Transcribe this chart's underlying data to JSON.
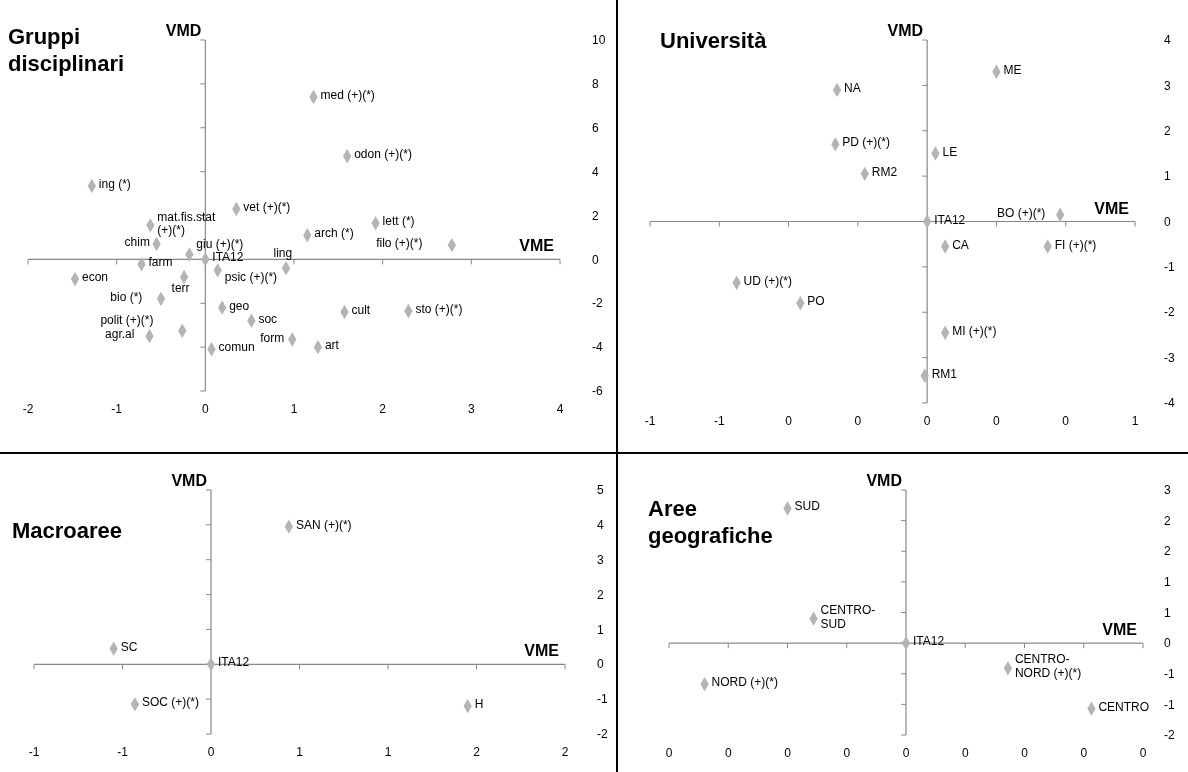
{
  "chart_data": [
    {
      "type": "scatter",
      "title": "Gruppi\ndisciplinari",
      "xlabel": "VME",
      "ylabel": "VMD",
      "marker": "diamond",
      "xlim": [
        -2,
        4
      ],
      "ylim": [
        -6,
        10
      ],
      "xticks": [
        -2,
        -1,
        0,
        1,
        2,
        3,
        4
      ],
      "yticks": [
        -6,
        -4,
        -2,
        0,
        2,
        4,
        6,
        8,
        10
      ],
      "series": [
        {
          "color": "#b4b4b4",
          "x": [
            1.22,
            1.6,
            -1.28,
            0.35,
            -0.62,
            -0.55,
            -0.18,
            0,
            1.15,
            1.92,
            2.78,
            -0.72,
            -1.47,
            -0.24,
            0.14,
            0.91,
            -0.5,
            0.19,
            0.52,
            1.57,
            2.29,
            -0.26,
            -0.63,
            0.98,
            1.27,
            0.07
          ],
          "values": [
            7.4,
            4.7,
            3.35,
            2.3,
            1.55,
            0.7,
            0.22,
            0,
            1.1,
            1.65,
            0.65,
            -0.22,
            -0.9,
            -0.8,
            -0.5,
            -0.4,
            -1.8,
            -2.2,
            -2.8,
            -2.4,
            -2.35,
            -3.25,
            -3.5,
            -3.65,
            -4.0,
            -4.1
          ]
        }
      ],
      "annotations": [
        {
          "text": "med (+)(*)",
          "x": 1.22,
          "y": 7.4
        },
        {
          "text": "odon (+)(*)",
          "x": 1.6,
          "y": 4.7
        },
        {
          "text": "ing (*)",
          "x": -1.28,
          "y": 3.35
        },
        {
          "text": "vet (+)(*)",
          "x": 0.35,
          "y": 2.3
        },
        {
          "text": "mat.fis.stat\n(+)(*)",
          "x": -0.62,
          "y": 1.55
        },
        {
          "text": "chim",
          "x": -0.55,
          "y": 0.7
        },
        {
          "text": "giu (+)(*)",
          "x": -0.18,
          "y": 0.22
        },
        {
          "text": "ITA12",
          "x": 0,
          "y": 0
        },
        {
          "text": "arch (*)",
          "x": 1.15,
          "y": 1.1
        },
        {
          "text": "lett (*)",
          "x": 1.92,
          "y": 1.65
        },
        {
          "text": "filo (+)(*)",
          "x": 2.78,
          "y": 0.65
        },
        {
          "text": "farm",
          "x": -0.72,
          "y": -0.22
        },
        {
          "text": "econ",
          "x": -1.47,
          "y": -0.9
        },
        {
          "text": "terr",
          "x": -0.24,
          "y": -0.8
        },
        {
          "text": "psic (+)(*)",
          "x": 0.14,
          "y": -0.5
        },
        {
          "text": "ling",
          "x": 0.91,
          "y": -0.4
        },
        {
          "text": "bio (*)",
          "x": -0.5,
          "y": -1.8
        },
        {
          "text": "geo",
          "x": 0.19,
          "y": -2.2
        },
        {
          "text": "soc",
          "x": 0.52,
          "y": -2.8
        },
        {
          "text": "cult",
          "x": 1.57,
          "y": -2.4
        },
        {
          "text": "sto (+)(*)",
          "x": 2.29,
          "y": -2.35
        },
        {
          "text": "polit (+)(*)",
          "x": -0.26,
          "y": -3.25
        },
        {
          "text": "agr.al",
          "x": -0.63,
          "y": -3.5
        },
        {
          "text": "form",
          "x": 0.98,
          "y": -3.65
        },
        {
          "text": "art",
          "x": 1.27,
          "y": -4.0
        },
        {
          "text": "comun",
          "x": 0.07,
          "y": -4.1
        }
      ]
    },
    {
      "type": "scatter",
      "title": "Università",
      "xlabel": "VME",
      "ylabel": "VMD",
      "marker": "diamond",
      "xlim": [
        -0.8,
        0.6
      ],
      "ylim": [
        -4,
        4
      ],
      "xticks": [
        {
          "value": -0.8,
          "label": "-1"
        },
        {
          "value": -0.6,
          "label": "-1"
        },
        {
          "value": -0.4,
          "label": "0"
        },
        {
          "value": -0.2,
          "label": "0"
        },
        {
          "value": 0,
          "label": "0"
        },
        {
          "value": 0.2,
          "label": "0"
        },
        {
          "value": 0.4,
          "label": "0"
        },
        {
          "value": 0.6,
          "label": "1"
        }
      ],
      "yticks": [
        -4,
        -3,
        -2,
        -1,
        0,
        1,
        2,
        3,
        4
      ],
      "series": [
        {
          "color": "#b4b4b4",
          "x": [
            0.2,
            -0.26,
            -0.265,
            -0.18,
            0.024,
            0,
            0.384,
            0.052,
            0.348,
            -0.55,
            -0.366,
            0.052,
            -0.007
          ],
          "values": [
            3.3,
            2.9,
            1.7,
            1.05,
            1.5,
            0,
            0.15,
            -0.55,
            -0.55,
            -1.35,
            -1.8,
            -2.45,
            -3.4
          ]
        }
      ],
      "annotations": [
        {
          "text": "ME",
          "x": 0.2,
          "y": 3.3
        },
        {
          "text": "NA",
          "x": -0.26,
          "y": 2.9
        },
        {
          "text": "PD (+)(*)",
          "x": -0.265,
          "y": 1.7
        },
        {
          "text": "RM2",
          "x": -0.18,
          "y": 1.05
        },
        {
          "text": "LE",
          "x": 0.024,
          "y": 1.5
        },
        {
          "text": "ITA12",
          "x": 0,
          "y": 0
        },
        {
          "text": "BO (+)(*)",
          "x": 0.384,
          "y": 0.15
        },
        {
          "text": "CA",
          "x": 0.052,
          "y": -0.55
        },
        {
          "text": "FI (+)(*)",
          "x": 0.348,
          "y": -0.55
        },
        {
          "text": "UD (+)(*)",
          "x": -0.55,
          "y": -1.35
        },
        {
          "text": "PO",
          "x": -0.366,
          "y": -1.8
        },
        {
          "text": "MI (+)(*)",
          "x": 0.052,
          "y": -2.45
        },
        {
          "text": "RM1",
          "x": -0.007,
          "y": -3.4
        }
      ]
    },
    {
      "type": "scatter",
      "title": "Macroaree",
      "xlabel": "VME",
      "ylabel": "VMD",
      "marker": "diamond",
      "xlim": [
        -1,
        2
      ],
      "ylim": [
        -2,
        5
      ],
      "xticks": [
        -1,
        {
          "value": -0.5,
          "label": "-1"
        },
        0,
        {
          "value": 0.5,
          "label": "1"
        },
        1,
        {
          "value": 1.5,
          "label": "2"
        },
        2
      ],
      "yticks": [
        -2,
        -1,
        0,
        1,
        2,
        3,
        4,
        5
      ],
      "series": [
        {
          "color": "#b4b4b4",
          "x": [
            0.44,
            -0.55,
            0,
            -0.43,
            1.45
          ],
          "values": [
            3.95,
            0.45,
            0,
            -1.15,
            -1.2
          ]
        }
      ],
      "annotations": [
        {
          "text": "SAN (+)(*)",
          "x": 0.44,
          "y": 3.95
        },
        {
          "text": "SC",
          "x": -0.55,
          "y": 0.45
        },
        {
          "text": "ITA12",
          "x": 0,
          "y": 0
        },
        {
          "text": "SOC (+)(*)",
          "x": -0.43,
          "y": -1.15
        },
        {
          "text": "H",
          "x": 1.45,
          "y": -1.2
        }
      ]
    },
    {
      "type": "scatter",
      "title": "Aree\ngeografiche",
      "xlabel": "VME",
      "ylabel": "VMD",
      "marker": "diamond",
      "xlim": [
        -0.4,
        0.4
      ],
      "ylim": [
        -1.5,
        2.5
      ],
      "xticks": [
        {
          "value": -0.4,
          "label": "0"
        },
        {
          "value": -0.3,
          "label": "0"
        },
        {
          "value": -0.2,
          "label": "0"
        },
        {
          "value": -0.1,
          "label": "0"
        },
        {
          "value": 0,
          "label": "0"
        },
        {
          "value": 0.1,
          "label": "0"
        },
        {
          "value": 0.2,
          "label": "0"
        },
        {
          "value": 0.3,
          "label": "0"
        },
        {
          "value": 0.4,
          "label": "0"
        }
      ],
      "yticks": [
        {
          "value": -1.5,
          "label": "-2"
        },
        {
          "value": -1,
          "label": "-1"
        },
        {
          "value": -0.5,
          "label": "-1"
        },
        0,
        {
          "value": 0.5,
          "label": "1"
        },
        1,
        {
          "value": 1.5,
          "label": "2"
        },
        2,
        {
          "value": 2.5,
          "label": "3"
        }
      ],
      "series": [
        {
          "color": "#b4b4b4",
          "x": [
            -0.2,
            -0.156,
            0,
            -0.34,
            0.172,
            0.313
          ],
          "values": [
            2.2,
            0.4,
            0,
            -0.67,
            -0.41,
            -1.07
          ]
        }
      ],
      "annotations": [
        {
          "text": "SUD",
          "x": -0.2,
          "y": 2.2
        },
        {
          "text": "CENTRO-\nSUD",
          "x": -0.156,
          "y": 0.4
        },
        {
          "text": "ITA12",
          "x": 0,
          "y": 0
        },
        {
          "text": "NORD (+)(*)",
          "x": -0.34,
          "y": -0.67
        },
        {
          "text": "CENTRO-\nNORD (+)(*)",
          "x": 0.172,
          "y": -0.41
        },
        {
          "text": "CENTRO",
          "x": 0.313,
          "y": -1.07
        }
      ]
    }
  ]
}
